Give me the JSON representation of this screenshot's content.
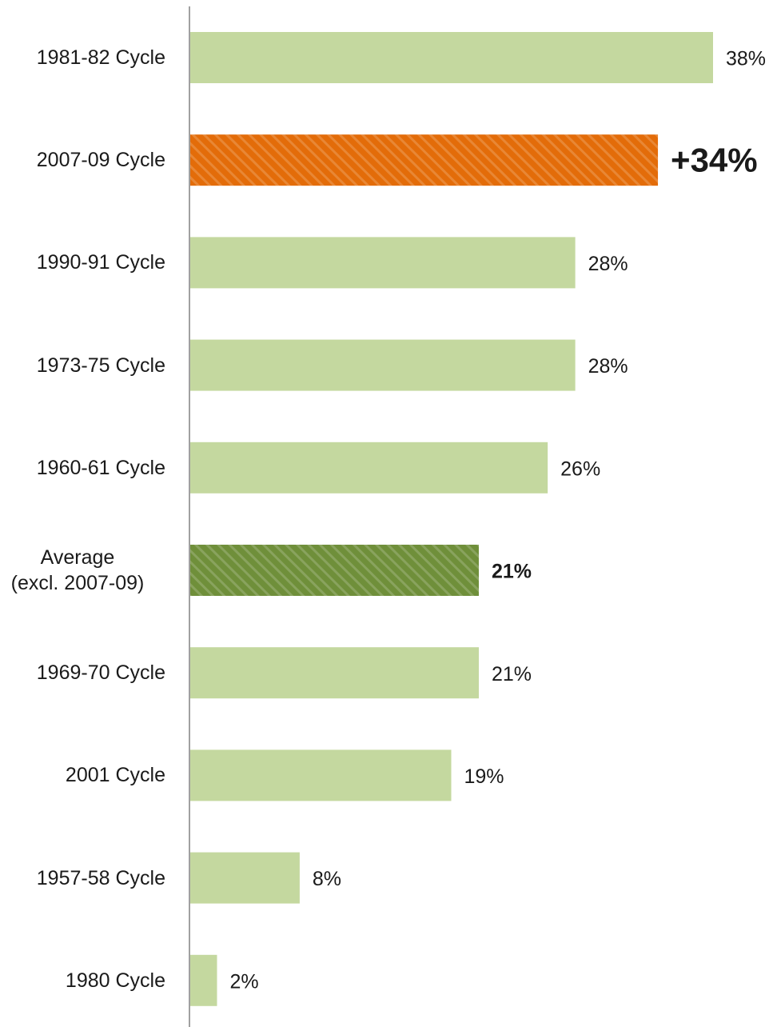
{
  "chart_data": {
    "type": "barh",
    "categories": [
      "1981-82 Cycle",
      "2007-09 Cycle",
      "1990-91 Cycle",
      "1973-75 Cycle",
      "1960-61 Cycle",
      "Average\n(excl. 2007-09)",
      "1969-70 Cycle",
      "2001 Cycle",
      "1957-58 Cycle",
      "1980 Cycle"
    ],
    "values": [
      38,
      34,
      28,
      28,
      26,
      21,
      21,
      19,
      8,
      2
    ],
    "value_labels": [
      "38%",
      "+34%",
      "28%",
      "28%",
      "26%",
      "21%",
      "21%",
      "19%",
      "8%",
      "2%"
    ],
    "colors": [
      "#c4d89f",
      "#e36c09",
      "#c4d89f",
      "#c4d89f",
      "#c4d89f",
      "#6f8f3a",
      "#c4d89f",
      "#c4d89f",
      "#c4d89f",
      "#c4d89f"
    ],
    "hatched": [
      false,
      true,
      false,
      false,
      false,
      true,
      false,
      false,
      false,
      false
    ],
    "value_label_style": [
      "plain",
      "large-bold",
      "plain",
      "plain",
      "plain",
      "bold",
      "plain",
      "plain",
      "plain",
      "plain"
    ]
  }
}
